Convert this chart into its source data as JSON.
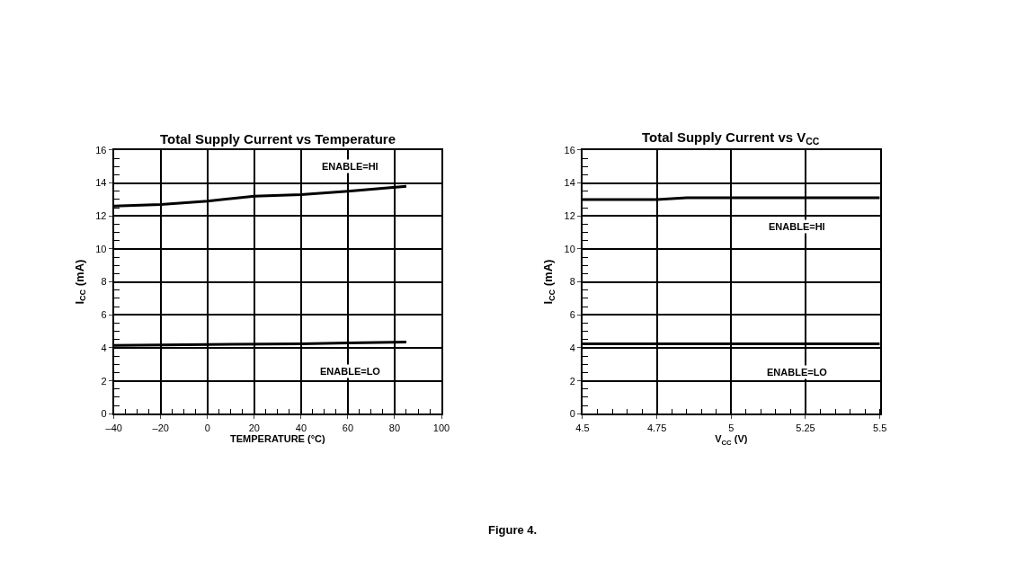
{
  "chart_data": [
    {
      "type": "line",
      "title": "Total Supply Current vs Temperature",
      "xlabel": "TEMPERATURE (°C)",
      "ylabel": "I$_{CC}$ (mA)",
      "xlim": [
        -40,
        100
      ],
      "xticks": [
        {
          "value": -40,
          "label": "–40"
        },
        {
          "value": -20,
          "label": "–20"
        },
        0,
        20,
        40,
        60,
        80,
        100
      ],
      "ylim": [
        0,
        16
      ],
      "yticks": [
        0,
        2,
        4,
        6,
        8,
        10,
        12,
        14,
        16
      ],
      "grid": true,
      "legend": false,
      "marker": "none",
      "line_style": "solid",
      "series": [
        {
          "name": "ENABLE=HI",
          "color": "#000000",
          "x": [
            -40,
            -20,
            0,
            20,
            40,
            60,
            85
          ],
          "values": [
            12.6,
            12.7,
            12.9,
            13.2,
            13.3,
            13.5,
            13.8
          ]
        },
        {
          "name": "ENABLE=LO",
          "color": "#000000",
          "x": [
            -40,
            0,
            40,
            60,
            85
          ],
          "values": [
            4.15,
            4.2,
            4.25,
            4.3,
            4.35
          ]
        }
      ]
    },
    {
      "type": "line",
      "title": "Total Supply Current vs V$_{CC}$",
      "xlabel": "V$_{CC}$ (V)",
      "ylabel": "I$_{CC}$ (mA)",
      "xlim": [
        4.5,
        5.5
      ],
      "xticks": [
        4.5,
        4.75,
        5,
        5.25,
        5.5
      ],
      "ylim": [
        0,
        16
      ],
      "yticks": [
        0,
        2,
        4,
        6,
        8,
        10,
        12,
        14,
        16
      ],
      "grid": true,
      "legend": false,
      "marker": "none",
      "line_style": "solid",
      "annotations": [
        "Figure 4."
      ],
      "series": [
        {
          "name": "ENABLE=HI",
          "color": "#000000",
          "x": [
            4.5,
            4.75,
            4.85,
            5.5
          ],
          "values": [
            13.0,
            13.0,
            13.1,
            13.1
          ]
        },
        {
          "name": "ENABLE=LO",
          "color": "#000000",
          "x": [
            4.5,
            5.5
          ],
          "values": [
            4.25,
            4.25
          ]
        }
      ]
    }
  ]
}
